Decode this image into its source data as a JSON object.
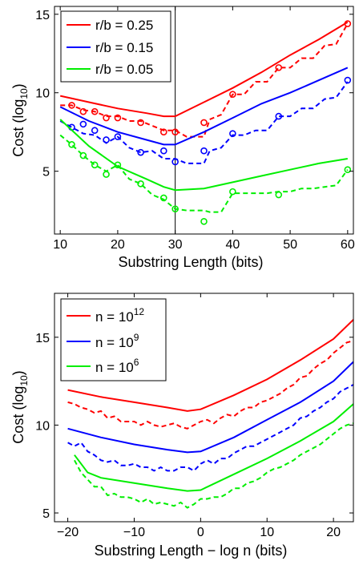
{
  "chart_data": [
    {
      "type": "line",
      "xlabel": "Substring Length (bits)",
      "ylabel_main": "Cost (log",
      "ylabel_sub": "10",
      "ylabel_close": ")",
      "xlim": [
        9,
        61
      ],
      "ylim": [
        1,
        15.5
      ],
      "xticks": [
        10,
        20,
        30,
        40,
        50,
        60
      ],
      "yticks": [
        5,
        10,
        15
      ],
      "xtick_labels": [
        "10",
        "20",
        "30",
        "40",
        "50",
        "60"
      ],
      "ytick_labels": [
        "5",
        "10",
        "15"
      ],
      "grid": false,
      "legend_position": "top-left",
      "vline_x": 30,
      "series": [
        {
          "name": "r/b = 0.25",
          "color": "#ff0000",
          "theory": {
            "x": [
              10,
              15,
              20,
              25,
              28,
              30,
              35,
              40,
              45,
              50,
              55,
              60
            ],
            "y": [
              9.8,
              9.4,
              9.0,
              8.7,
              8.5,
              8.5,
              9.4,
              10.3,
              11.3,
              12.4,
              13.4,
              14.5
            ]
          },
          "sim": {
            "x": [
              10,
              12,
              14,
              16,
              18,
              20,
              22,
              24,
              26,
              28,
              30,
              32,
              35,
              36,
              38,
              40,
              42,
              44,
              46,
              48,
              50,
              52,
              54,
              56,
              58,
              60
            ],
            "y": [
              9.2,
              9.2,
              8.9,
              8.8,
              8.5,
              8.5,
              8.2,
              8.2,
              7.9,
              7.6,
              7.6,
              7.2,
              7.2,
              8.3,
              8.6,
              9.9,
              9.9,
              10.7,
              10.7,
              11.6,
              11.6,
              12.2,
              12.2,
              13.0,
              13.1,
              14.4
            ]
          },
          "markers": {
            "x": [
              12,
              14,
              16,
              18,
              20,
              24,
              28,
              30,
              35,
              40,
              48,
              60
            ],
            "y": [
              9.2,
              8.8,
              8.8,
              8.4,
              8.4,
              8.1,
              7.5,
              7.5,
              8.1,
              9.9,
              11.6,
              14.4
            ]
          }
        },
        {
          "name": "r/b = 0.15",
          "color": "#0000ff",
          "theory": {
            "x": [
              10,
              15,
              20,
              25,
              28,
              30,
              35,
              40,
              45,
              50,
              55,
              60
            ],
            "y": [
              9.1,
              8.2,
              7.5,
              7.0,
              6.7,
              6.7,
              7.5,
              8.4,
              9.3,
              10.0,
              10.8,
              11.6
            ]
          },
          "sim": {
            "x": [
              10,
              12,
              14,
              16,
              18,
              20,
              22,
              24,
              26,
              28,
              30,
              32,
              35,
              36,
              38,
              40,
              42,
              44,
              46,
              48,
              50,
              52,
              54,
              56,
              58,
              60
            ],
            "y": [
              8.2,
              7.8,
              7.4,
              7.3,
              6.8,
              7.2,
              6.5,
              6.2,
              6.3,
              5.8,
              5.8,
              5.5,
              5.5,
              6.3,
              6.5,
              7.3,
              7.3,
              7.6,
              7.6,
              8.5,
              8.5,
              9.0,
              9.0,
              9.6,
              9.7,
              10.7
            ]
          },
          "markers": {
            "x": [
              12,
              14,
              16,
              18,
              20,
              24,
              28,
              30,
              35,
              40,
              48,
              60
            ],
            "y": [
              7.8,
              8.0,
              7.6,
              7.0,
              7.2,
              6.2,
              6.3,
              5.6,
              6.3,
              7.4,
              8.5,
              10.8
            ]
          }
        },
        {
          "name": "r/b = 0.05",
          "color": "#00ee00",
          "theory": {
            "x": [
              10,
              15,
              20,
              25,
              28,
              30,
              35,
              40,
              45,
              50,
              55,
              60
            ],
            "y": [
              8.3,
              6.6,
              5.3,
              4.5,
              4.0,
              3.8,
              3.9,
              4.3,
              4.7,
              5.1,
              5.5,
              5.8
            ]
          },
          "sim": {
            "x": [
              10,
              12,
              14,
              16,
              18,
              20,
              22,
              24,
              26,
              28,
              30,
              32,
              35,
              36,
              38,
              40,
              42,
              44,
              46,
              48,
              50,
              52,
              54,
              56,
              58,
              60
            ],
            "y": [
              7.3,
              6.7,
              6.0,
              5.4,
              5.0,
              5.4,
              4.5,
              4.2,
              3.5,
              3.2,
              2.6,
              2.5,
              2.5,
              2.4,
              2.4,
              3.6,
              3.6,
              3.6,
              3.6,
              3.7,
              3.7,
              3.9,
              3.9,
              4.0,
              4.1,
              5.1
            ]
          },
          "markers": {
            "x": [
              12,
              14,
              16,
              18,
              20,
              24,
              28,
              30,
              35,
              40,
              48,
              60
            ],
            "y": [
              6.7,
              6.0,
              5.4,
              4.8,
              5.4,
              4.2,
              3.3,
              2.6,
              1.8,
              3.7,
              3.5,
              5.1
            ]
          }
        }
      ]
    },
    {
      "type": "line",
      "xlabel": "Substring Length − log n (bits)",
      "ylabel_main": "Cost (log",
      "ylabel_sub": "10",
      "ylabel_close": ")",
      "xlim": [
        -22,
        23
      ],
      "ylim": [
        4.5,
        17.5
      ],
      "xticks": [
        -20,
        -10,
        0,
        10,
        20
      ],
      "yticks": [
        5,
        10,
        15
      ],
      "xtick_labels": [
        "−20",
        "−10",
        "0",
        "10",
        "20"
      ],
      "ytick_labels": [
        "5",
        "10",
        "15"
      ],
      "grid": false,
      "legend_position": "top-left",
      "series": [
        {
          "name_prefix": "n = 10",
          "name_exp": "12",
          "color": "#ff0000",
          "theory": {
            "x": [
              -20,
              -15,
              -10,
              -5,
              -2,
              0,
              5,
              10,
              15,
              20,
              23
            ],
            "y": [
              12.0,
              11.6,
              11.3,
              11.0,
              10.8,
              10.9,
              11.7,
              12.6,
              13.7,
              14.9,
              16.0
            ]
          },
          "sim": {
            "x": [
              -20,
              -19,
              -18,
              -17,
              -16,
              -15,
              -14,
              -13,
              -12,
              -11,
              -10,
              -9,
              -8,
              -7,
              -6,
              -5,
              -4,
              -3,
              -2,
              -1,
              0,
              1,
              2,
              3,
              4,
              5,
              6,
              7,
              8,
              9,
              10,
              11,
              12,
              13,
              14,
              15,
              16,
              17,
              18,
              19,
              20,
              21,
              22,
              23
            ],
            "y": [
              11.3,
              11.2,
              11.0,
              10.9,
              10.7,
              10.8,
              10.4,
              10.5,
              10.2,
              10.2,
              10.2,
              10.0,
              10.2,
              10.0,
              9.9,
              10.0,
              10.1,
              9.9,
              9.8,
              10.0,
              10.2,
              10.3,
              10.1,
              10.4,
              10.6,
              10.5,
              10.8,
              11.0,
              11.0,
              11.3,
              11.4,
              11.6,
              11.8,
              12.1,
              12.3,
              12.7,
              12.8,
              13.2,
              13.5,
              13.7,
              14.1,
              14.4,
              14.7,
              14.8
            ]
          }
        },
        {
          "name_prefix": "n = 10",
          "name_exp": "9",
          "color": "#0000ff",
          "theory": {
            "x": [
              -20,
              -15,
              -10,
              -5,
              -2,
              0,
              5,
              10,
              15,
              20,
              23
            ],
            "y": [
              9.8,
              9.3,
              8.9,
              8.6,
              8.45,
              8.5,
              9.3,
              10.3,
              11.3,
              12.5,
              13.6
            ]
          },
          "sim": {
            "x": [
              -20,
              -19,
              -18,
              -17,
              -16,
              -15,
              -14,
              -13,
              -12,
              -11,
              -10,
              -9,
              -8,
              -7,
              -6,
              -5,
              -4,
              -3,
              -2,
              -1,
              0,
              1,
              2,
              3,
              4,
              5,
              6,
              7,
              8,
              9,
              10,
              11,
              12,
              13,
              14,
              15,
              16,
              17,
              18,
              19,
              20,
              21,
              22,
              23
            ],
            "y": [
              9.0,
              8.8,
              9.0,
              8.5,
              8.3,
              8.0,
              7.9,
              8.0,
              7.7,
              7.7,
              7.8,
              7.6,
              7.6,
              7.4,
              7.6,
              7.4,
              7.4,
              7.6,
              7.6,
              7.4,
              7.8,
              8.0,
              7.8,
              8.1,
              8.1,
              8.4,
              8.6,
              8.8,
              8.8,
              9.0,
              9.2,
              9.4,
              9.6,
              9.8,
              10.0,
              10.4,
              10.5,
              10.8,
              11.0,
              11.3,
              11.5,
              11.9,
              12.1,
              12.3
            ]
          }
        },
        {
          "name_prefix": "n = 10",
          "name_exp": "6",
          "color": "#00ee00",
          "theory": {
            "x": [
              -19,
              -17,
              -15,
              -10,
              -5,
              -2,
              0,
              5,
              10,
              15,
              20,
              23
            ],
            "y": [
              8.3,
              7.3,
              7.0,
              6.7,
              6.4,
              6.25,
              6.3,
              7.2,
              8.1,
              9.1,
              10.2,
              11.2
            ]
          },
          "sim": {
            "x": [
              -19,
              -18,
              -17,
              -16,
              -15,
              -14,
              -13,
              -12,
              -11,
              -10,
              -9,
              -8,
              -7,
              -6,
              -5,
              -4,
              -3,
              -2,
              -1,
              0,
              1,
              2,
              3,
              4,
              5,
              6,
              7,
              8,
              9,
              10,
              11,
              12,
              13,
              14,
              15,
              16,
              17,
              18,
              19,
              20,
              21,
              22,
              23
            ],
            "y": [
              8.0,
              7.3,
              6.9,
              6.5,
              6.5,
              6.0,
              6.1,
              5.9,
              5.9,
              5.8,
              5.6,
              5.8,
              5.5,
              5.6,
              5.5,
              5.4,
              5.6,
              5.3,
              5.5,
              5.8,
              5.8,
              5.9,
              5.9,
              6.1,
              6.4,
              6.4,
              6.7,
              6.8,
              7.0,
              7.3,
              7.5,
              7.6,
              7.8,
              8.0,
              8.3,
              8.5,
              8.7,
              8.9,
              9.2,
              9.5,
              9.8,
              10.0,
              10.1
            ]
          }
        }
      ]
    }
  ]
}
